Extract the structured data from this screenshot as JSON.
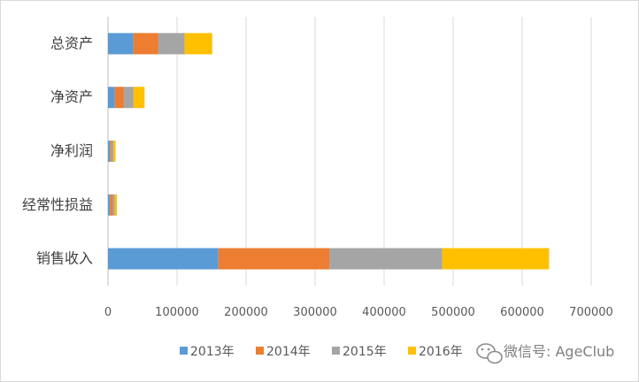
{
  "chart_data": {
    "type": "bar",
    "orientation": "horizontal",
    "stacked": true,
    "categories": [
      "总资产",
      "净资产",
      "净利润",
      "经常性损益",
      "销售收入"
    ],
    "series": [
      {
        "name": "2013年",
        "color": "#5b9bd5",
        "values": [
          37000,
          10000,
          3000,
          3000,
          160000
        ]
      },
      {
        "name": "2014年",
        "color": "#ed7d31",
        "values": [
          36000,
          13000,
          2000,
          4000,
          161000
        ]
      },
      {
        "name": "2015年",
        "color": "#a5a5a5",
        "values": [
          38000,
          14000,
          3000,
          3000,
          163000
        ]
      },
      {
        "name": "2016年",
        "color": "#ffc000",
        "values": [
          40000,
          16000,
          3000,
          3000,
          155000
        ]
      }
    ],
    "xlim": [
      0,
      700000
    ],
    "x_ticks": [
      "0",
      "100000",
      "200000",
      "300000",
      "400000",
      "500000",
      "600000",
      "700000"
    ],
    "grid": true,
    "legend_position": "bottom"
  },
  "watermark": {
    "icon": "wechat-icon",
    "text": "微信号: AgeClub"
  }
}
